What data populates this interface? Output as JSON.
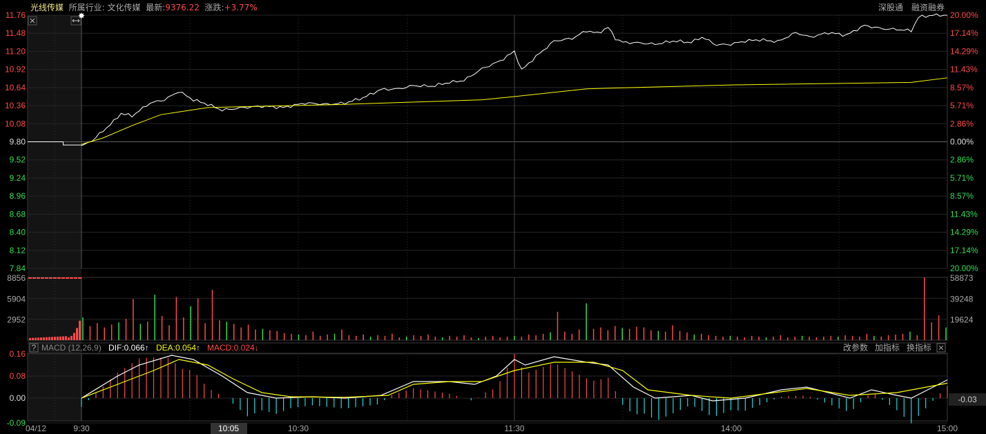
{
  "header": {
    "stock_name": "光线传媒",
    "industry_label": "所属行业:",
    "industry": "文化传媒",
    "latest_label": "最新:",
    "latest": "9376.22",
    "change_label": "涨跌:",
    "change": "+3.77%",
    "right_links": [
      "深股通",
      "融资融券"
    ]
  },
  "colors": {
    "up": "#ff4a4a",
    "down": "#33dd55",
    "price": "#ffffff",
    "avg": "#ffff00",
    "macd_neg": "#22dddd"
  },
  "chart_data": [
    {
      "type": "line",
      "title": "分时",
      "prev_close": 9.8,
      "ylim": [
        7.84,
        11.76
      ],
      "left_ticks": [
        "11.76",
        "11.48",
        "11.20",
        "10.92",
        "10.64",
        "10.36",
        "10.08",
        "9.80",
        "9.52",
        "9.24",
        "8.96",
        "8.68",
        "8.40",
        "8.12",
        "7.84"
      ],
      "right_ticks": [
        "20.00%",
        "17.14%",
        "14.29%",
        "11.43%",
        "8.57%",
        "5.71%",
        "2.86%",
        "0.00%",
        "2.86%",
        "5.71%",
        "8.57%",
        "11.43%",
        "14.29%",
        "17.14%",
        "20.00%"
      ],
      "premarket": {
        "price": [
          [
            0,
            9.8
          ],
          [
            0.66,
            9.8
          ],
          [
            0.66,
            9.75
          ],
          [
            1,
            9.75
          ]
        ]
      },
      "series": [
        {
          "name": "price",
          "points": [
            [
              0,
              9.74
            ],
            [
              3,
              9.82
            ],
            [
              6,
              9.97
            ],
            [
              9,
              10.12
            ],
            [
              11,
              10.24
            ],
            [
              14,
              10.2
            ],
            [
              19,
              10.4
            ],
            [
              23,
              10.45
            ],
            [
              27,
              10.58
            ],
            [
              31,
              10.45
            ],
            [
              35,
              10.38
            ],
            [
              39,
              10.29
            ],
            [
              45,
              10.33
            ],
            [
              50,
              10.35
            ],
            [
              56,
              10.33
            ],
            [
              62,
              10.4
            ],
            [
              68,
              10.38
            ],
            [
              73,
              10.4
            ],
            [
              78,
              10.48
            ],
            [
              83,
              10.61
            ],
            [
              88,
              10.62
            ],
            [
              92,
              10.67
            ],
            [
              97,
              10.66
            ],
            [
              102,
              10.72
            ],
            [
              106,
              10.75
            ],
            [
              111,
              10.93
            ],
            [
              116,
              11.05
            ],
            [
              120,
              11.2
            ],
            [
              122,
              10.91
            ],
            [
              126,
              11.12
            ],
            [
              131,
              11.36
            ],
            [
              136,
              11.4
            ],
            [
              140,
              11.52
            ],
            [
              143,
              11.48
            ],
            [
              146,
              11.57
            ],
            [
              148,
              11.4
            ],
            [
              150,
              11.34
            ],
            [
              155,
              11.33
            ],
            [
              159,
              11.31
            ],
            [
              164,
              11.36
            ],
            [
              169,
              11.34
            ],
            [
              172,
              11.42
            ],
            [
              176,
              11.3
            ],
            [
              180,
              11.31
            ],
            [
              184,
              11.36
            ],
            [
              188,
              11.38
            ],
            [
              193,
              11.35
            ],
            [
              198,
              11.49
            ],
            [
              202,
              11.42
            ],
            [
              207,
              11.49
            ],
            [
              212,
              11.45
            ],
            [
              217,
              11.6
            ],
            [
              222,
              11.55
            ],
            [
              226,
              11.54
            ],
            [
              230,
              11.52
            ],
            [
              232,
              11.73
            ],
            [
              236,
              11.76
            ],
            [
              240,
              11.76
            ]
          ]
        },
        {
          "name": "avg",
          "points": [
            [
              0,
              9.76
            ],
            [
              6,
              9.86
            ],
            [
              14,
              10.05
            ],
            [
              22,
              10.22
            ],
            [
              35,
              10.33
            ],
            [
              73,
              10.38
            ],
            [
              111,
              10.45
            ],
            [
              120,
              10.5
            ],
            [
              140,
              10.62
            ],
            [
              180,
              10.68
            ],
            [
              230,
              10.72
            ],
            [
              240,
              10.79
            ]
          ]
        }
      ],
      "xticks": [
        "04/12",
        "9:30",
        "10:05",
        "10:30",
        "11:30",
        "14:00",
        "15:00"
      ],
      "crosshair_time": "10:05"
    },
    {
      "type": "bar",
      "title": "成交量",
      "left_ticks": [
        "8856",
        "5904",
        "2952"
      ],
      "right_ticks": [
        "58873",
        "39248",
        "19624"
      ],
      "ylim": [
        0,
        8856
      ],
      "values": [
        3200,
        2000,
        2400,
        1800,
        2200,
        2500,
        3000,
        5800,
        2300,
        2600,
        6400,
        3400,
        2100,
        6100,
        3200,
        4800,
        5900,
        2400,
        7100,
        2800,
        2600,
        2300,
        1800,
        2200,
        1500,
        1600,
        1400,
        1300,
        1000,
        900,
        800,
        700,
        1200,
        600,
        800,
        900,
        1500,
        700,
        600,
        800,
        500,
        700,
        600,
        900,
        400,
        500,
        700,
        600,
        800,
        500,
        400,
        600,
        500,
        700,
        400,
        300,
        500,
        600,
        400,
        500,
        600,
        500,
        800,
        700,
        900,
        1100,
        4000,
        1200,
        900,
        1500,
        5200,
        1600,
        1800,
        1400,
        2000,
        1700,
        1600,
        1900,
        1800,
        1400,
        1300,
        1200,
        2100,
        1300,
        1100,
        800,
        900,
        700,
        600,
        500,
        600,
        500,
        400,
        600,
        500,
        400,
        500,
        700,
        400,
        500,
        600,
        500,
        400,
        500,
        600,
        500,
        700,
        600,
        500,
        900,
        600,
        500,
        700,
        800,
        900,
        1200,
        700,
        8856,
        2500,
        3500,
        1800
      ]
    },
    {
      "type": "line",
      "title": "MACD (12,26,9)",
      "dif_label": "DIF:0.066",
      "dea_label": "DEA:0.054",
      "macd_label": "MACD:0.024",
      "left_ticks": [
        "0.16",
        "0.08",
        "0.00",
        "-0.09"
      ],
      "ylim": [
        -0.09,
        0.16
      ],
      "cursor_value": "-0.03",
      "buttons": [
        "改参数",
        "加指标",
        "换指标"
      ],
      "series": [
        {
          "name": "DIF",
          "points": [
            [
              0,
              0
            ],
            [
              10,
              0.08
            ],
            [
              16,
              0.12
            ],
            [
              25,
              0.155
            ],
            [
              31,
              0.14
            ],
            [
              39,
              0.08
            ],
            [
              46,
              0.02
            ],
            [
              54,
              0.0
            ],
            [
              64,
              0.005
            ],
            [
              73,
              0.0
            ],
            [
              83,
              0.01
            ],
            [
              92,
              0.06
            ],
            [
              102,
              0.06
            ],
            [
              109,
              0.05
            ],
            [
              115,
              0.08
            ],
            [
              120,
              0.14
            ],
            [
              123,
              0.12
            ],
            [
              131,
              0.15
            ],
            [
              140,
              0.13
            ],
            [
              146,
              0.12
            ],
            [
              153,
              0.04
            ],
            [
              159,
              0.0
            ],
            [
              169,
              0.01
            ],
            [
              175,
              -0.01
            ],
            [
              184,
              0.0
            ],
            [
              194,
              0.03
            ],
            [
              201,
              0.04
            ],
            [
              213,
              0.0
            ],
            [
              219,
              0.03
            ],
            [
              226,
              0.01
            ],
            [
              230,
              0.0
            ],
            [
              240,
              0.066
            ]
          ]
        },
        {
          "name": "DEA",
          "points": [
            [
              0,
              0
            ],
            [
              10,
              0.05
            ],
            [
              20,
              0.1
            ],
            [
              27,
              0.14
            ],
            [
              35,
              0.12
            ],
            [
              42,
              0.07
            ],
            [
              50,
              0.02
            ],
            [
              58,
              0.005
            ],
            [
              73,
              0.003
            ],
            [
              85,
              0.01
            ],
            [
              92,
              0.05
            ],
            [
              102,
              0.06
            ],
            [
              111,
              0.06
            ],
            [
              120,
              0.1
            ],
            [
              131,
              0.13
            ],
            [
              142,
              0.13
            ],
            [
              150,
              0.1
            ],
            [
              157,
              0.03
            ],
            [
              169,
              0.01
            ],
            [
              180,
              0.0
            ],
            [
              192,
              0.02
            ],
            [
              201,
              0.035
            ],
            [
              213,
              0.01
            ],
            [
              226,
              0.02
            ],
            [
              240,
              0.054
            ]
          ]
        }
      ]
    }
  ]
}
